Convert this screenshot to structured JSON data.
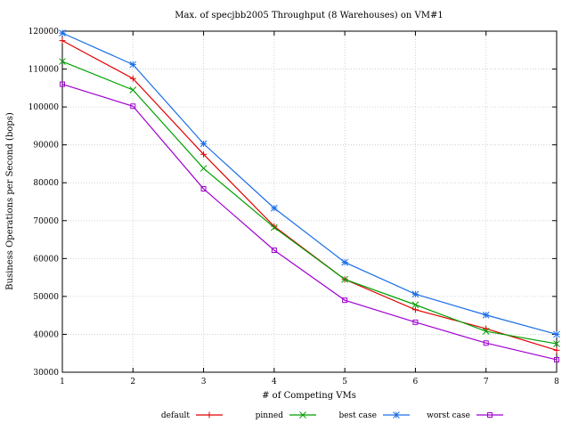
{
  "chart_data": {
    "type": "line",
    "title": "Max. of specjbb2005 Throughput (8 Warehouses) on VM#1",
    "xlabel": "# of Competing VMs",
    "ylabel": "Business Operations per Second (bops)",
    "x": [
      1,
      2,
      3,
      4,
      5,
      6,
      7,
      8
    ],
    "xlim": [
      1,
      8
    ],
    "ylim": [
      30000,
      120000
    ],
    "x_ticks": [
      1,
      2,
      3,
      4,
      5,
      6,
      7,
      8
    ],
    "y_ticks": [
      30000,
      40000,
      50000,
      60000,
      70000,
      80000,
      90000,
      100000,
      110000,
      120000
    ],
    "grid": true,
    "legend_position": "bottom",
    "series": [
      {
        "name": "default",
        "color": "#e00000",
        "marker": "plus",
        "values": [
          117500,
          107500,
          87500,
          68500,
          54500,
          46500,
          41500,
          35800
        ]
      },
      {
        "name": "pinned",
        "color": "#00a000",
        "marker": "cross",
        "values": [
          112000,
          104500,
          83800,
          68200,
          54500,
          47800,
          40800,
          37500
        ]
      },
      {
        "name": "best case",
        "color": "#1a6ee8",
        "marker": "star",
        "values": [
          119500,
          111200,
          90300,
          73300,
          59000,
          50600,
          45100,
          40000
        ]
      },
      {
        "name": "worst case",
        "color": "#a000d0",
        "marker": "square",
        "values": [
          106000,
          100200,
          78400,
          62200,
          49000,
          43200,
          37700,
          33300
        ]
      }
    ]
  }
}
